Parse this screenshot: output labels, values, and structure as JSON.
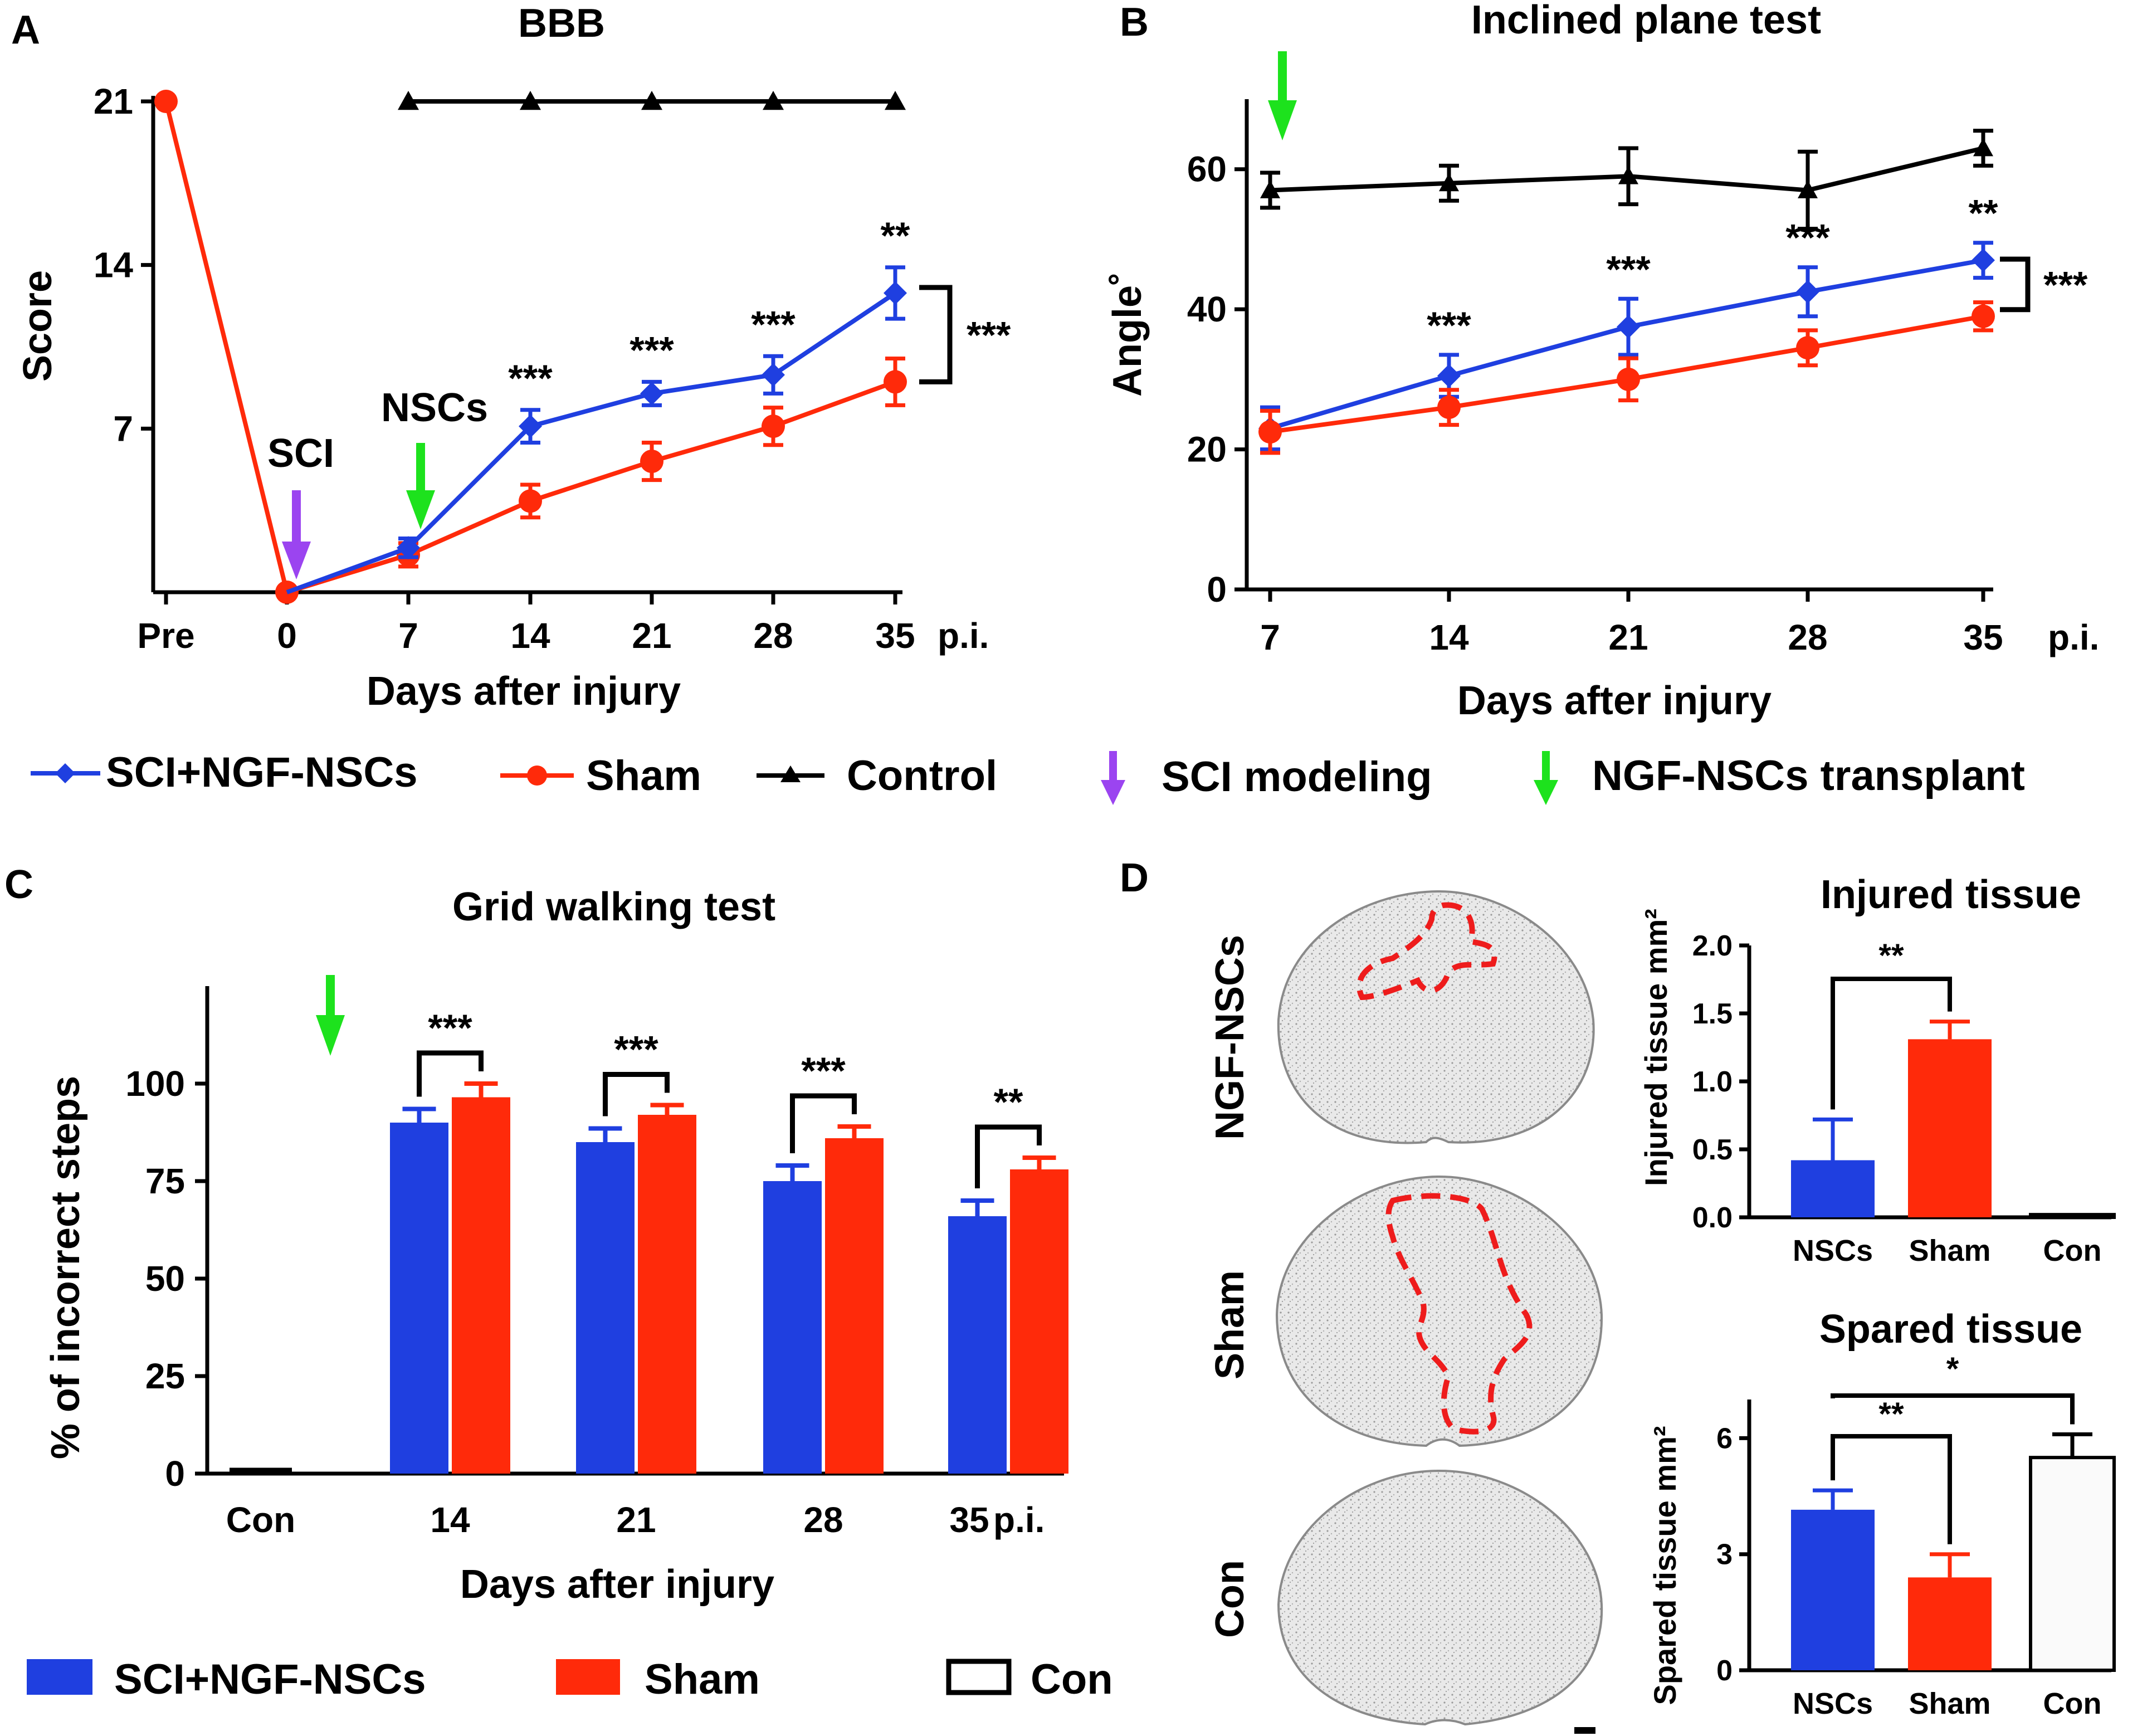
{
  "figure": {
    "colors": {
      "nsc": "#1f3fe0",
      "sham": "#ff2a0a",
      "control": "#000000",
      "sci_arrow": "#9b44f0",
      "nsc_arrow": "#1de21d"
    }
  },
  "legend_top": {
    "items": [
      "SCI+NGF-NSCs",
      "Sham",
      "Control"
    ],
    "arrows": [
      "SCI modeling",
      "NGF-NSCs transplant"
    ]
  },
  "legend_bottom": {
    "items": [
      "SCI+NGF-NSCs",
      "Sham",
      "Con"
    ]
  },
  "panel_D": {
    "label": "D",
    "image_labels": [
      "NGF-NSCs",
      "Sham",
      "Con"
    ]
  },
  "chart_data": [
    {
      "id": "A",
      "label": "A",
      "type": "line",
      "title": "BBB",
      "xlabel": "Days after injury",
      "ylabel": "Score",
      "x_ticks": [
        "Pre",
        "0",
        "7",
        "14",
        "21",
        "28",
        "35"
      ],
      "x_suffix": "p.i.",
      "ylim": [
        0,
        21
      ],
      "y_ticks": [
        "7",
        "14",
        "21"
      ],
      "series": [
        {
          "name": "Control",
          "marker": "triangle",
          "x_index": [
            2,
            3,
            4,
            5,
            6
          ],
          "values": [
            21,
            21,
            21,
            21,
            21
          ],
          "errors": [
            0,
            0,
            0,
            0,
            0
          ]
        },
        {
          "name": "Sham",
          "marker": "circle",
          "x_index": [
            0,
            1,
            2,
            3,
            4,
            5,
            6
          ],
          "values": [
            21,
            0,
            1.6,
            3.9,
            5.6,
            7.1,
            9.0
          ],
          "errors": [
            0,
            0,
            0.5,
            0.7,
            0.8,
            0.8,
            1.0
          ]
        },
        {
          "name": "SCI+NGF-NSCs",
          "marker": "diamond",
          "x_index": [
            2,
            3,
            4,
            5,
            6
          ],
          "values": [
            1.9,
            7.1,
            8.5,
            9.3,
            12.8
          ],
          "errors": [
            0.4,
            0.7,
            0.5,
            0.8,
            1.1
          ]
        }
      ],
      "significance": [
        "***",
        "***",
        "***",
        "**"
      ],
      "bracket": "***",
      "arrows": [
        "SCI",
        "NSCs"
      ]
    },
    {
      "id": "B",
      "label": "B",
      "type": "line",
      "title": "Inclined plane test",
      "xlabel": "Days after injury",
      "ylabel": "Angle˚",
      "x_ticks": [
        "7",
        "14",
        "21",
        "28",
        "35"
      ],
      "x_suffix": "p.i.",
      "ylim": [
        0,
        70
      ],
      "y_ticks": [
        "0",
        "20",
        "40",
        "60"
      ],
      "series": [
        {
          "name": "Control",
          "marker": "triangle",
          "values": [
            57,
            58,
            59,
            57,
            63
          ],
          "errors": [
            2.5,
            2.5,
            4,
            5.5,
            2.5
          ]
        },
        {
          "name": "SCI+NGF-NSCs",
          "marker": "diamond",
          "values": [
            23,
            30.5,
            37.5,
            42.5,
            47
          ],
          "errors": [
            3,
            3,
            4,
            3.5,
            2.5
          ]
        },
        {
          "name": "Sham",
          "marker": "circle",
          "values": [
            22.5,
            26,
            30,
            34.5,
            39
          ],
          "errors": [
            3,
            2.5,
            3,
            2.5,
            2
          ]
        }
      ],
      "significance": [
        "***",
        "***",
        "***",
        "**"
      ],
      "bracket": "***"
    },
    {
      "id": "C",
      "label": "C",
      "type": "bar",
      "title": "Grid walking test",
      "xlabel": "Days after injury",
      "ylabel": "% of incorrect steps",
      "categories": [
        "Con",
        "14",
        "21",
        "28",
        "35"
      ],
      "x_suffix": "p.i.",
      "ylim": [
        0,
        125
      ],
      "y_ticks": [
        "0",
        "25",
        "50",
        "75",
        "100"
      ],
      "series": [
        {
          "name": "Con",
          "values": [
            1,
            null,
            null,
            null,
            null
          ],
          "errors": [
            0,
            null,
            null,
            null,
            null
          ]
        },
        {
          "name": "SCI+NGF-NSCs",
          "values": [
            null,
            90,
            85,
            75,
            66
          ],
          "errors": [
            null,
            3.5,
            3.5,
            4,
            4
          ]
        },
        {
          "name": "Sham",
          "values": [
            null,
            96.5,
            92,
            86,
            78
          ],
          "errors": [
            null,
            3.5,
            2.5,
            3,
            3
          ]
        }
      ],
      "significance": [
        "***",
        "***",
        "***",
        "**"
      ]
    },
    {
      "id": "D1",
      "type": "bar",
      "title": "Injured tissue",
      "ylabel": "Injured tissue mm²",
      "categories": [
        "NSCs",
        "Sham",
        "Con"
      ],
      "values": [
        0.42,
        1.31,
        0.02
      ],
      "errors": [
        0.3,
        0.13,
        0
      ],
      "ylim": [
        0,
        2.0
      ],
      "y_ticks": [
        "0.0",
        "0.5",
        "1.0",
        "1.5",
        "2.0"
      ],
      "significance": [
        {
          "pair": [
            "NSCs",
            "Sham"
          ],
          "label": "**"
        }
      ]
    },
    {
      "id": "D2",
      "type": "bar",
      "title": "Spared tissue",
      "ylabel": "Spared tissue mm²",
      "categories": [
        "NSCs",
        "Sham",
        "Con"
      ],
      "values": [
        4.15,
        2.4,
        5.5
      ],
      "errors": [
        0.5,
        0.6,
        0.6
      ],
      "ylim": [
        0,
        7
      ],
      "y_ticks": [
        "0",
        "3",
        "6"
      ],
      "significance": [
        {
          "pair": [
            "NSCs",
            "Sham"
          ],
          "label": "**"
        },
        {
          "pair": [
            "NSCs",
            "Con"
          ],
          "label": "*"
        }
      ]
    }
  ]
}
